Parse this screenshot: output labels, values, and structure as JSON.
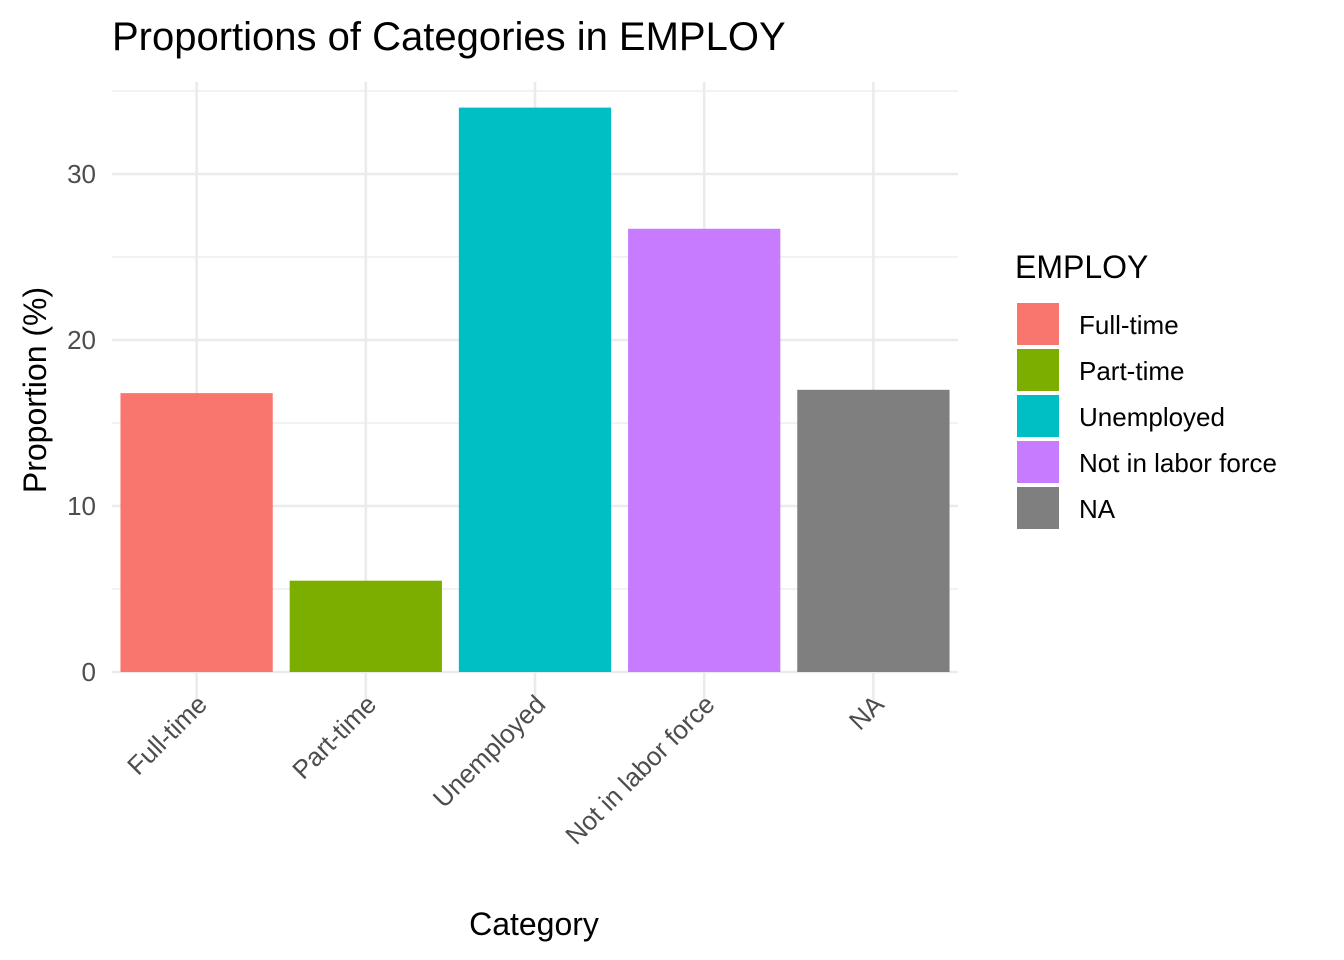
{
  "chart_data": {
    "type": "bar",
    "title": "Proportions of Categories in EMPLOY",
    "xlabel": "Category",
    "ylabel": "Proportion (%)",
    "categories": [
      "Full-time",
      "Part-time",
      "Unemployed",
      "Not in labor force",
      "NA"
    ],
    "values": [
      16.8,
      5.5,
      34.0,
      26.7,
      17.0
    ],
    "colors": [
      "#F8766D",
      "#7CAE00",
      "#00BFC4",
      "#C77CFF",
      "#7F7F7F"
    ],
    "ylim": [
      0,
      35.5
    ],
    "yticks": [
      0,
      10,
      20,
      30
    ],
    "grid": true,
    "legend": {
      "title": "EMPLOY",
      "position": "right",
      "entries": [
        "Full-time",
        "Part-time",
        "Unemployed",
        "Not in labor force",
        "NA"
      ]
    }
  }
}
